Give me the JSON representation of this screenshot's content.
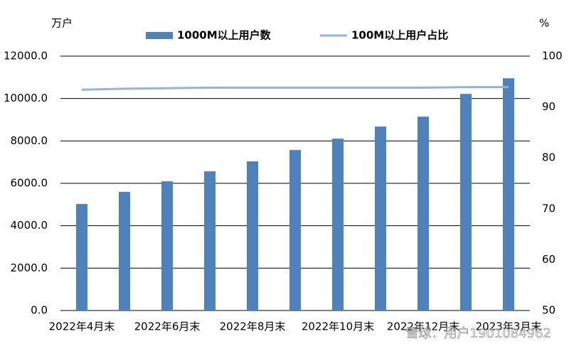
{
  "chart_data": {
    "type": "bar_line",
    "y_unit": "万户",
    "y2_unit": "%",
    "watermark": "雪球：用户1901084962",
    "categories": [
      "2022年4月末",
      null,
      "2022年6月末",
      null,
      "2022年8月末",
      null,
      "2022年10月末",
      null,
      "2022年12月末",
      null,
      "2023年3月末"
    ],
    "series": [
      {
        "name": "1000M以上用户数",
        "color": "#4f81bd",
        "values": [
          5025,
          5595,
          6097,
          6566,
          7035,
          7571,
          8107,
          8677,
          9146,
          10218,
          10955
        ]
      },
      {
        "name": "100M以上用户占比",
        "color": "#95b3d7",
        "axis": "y2",
        "values": [
          93.4,
          93.6,
          93.7,
          93.8,
          93.8,
          93.8,
          93.8,
          93.8,
          93.8,
          93.9,
          93.9
        ]
      }
    ],
    "ylim": [
      0,
      12000
    ],
    "yticks": [
      {
        "value": 0,
        "label": "0.0"
      },
      {
        "value": 2000,
        "label": "2000.0"
      },
      {
        "value": 4000,
        "label": "4000.0"
      },
      {
        "value": 6000,
        "label": "6000.0"
      },
      {
        "value": 8000,
        "label": "8000.0"
      },
      {
        "value": 10000,
        "label": "10000.0"
      },
      {
        "value": 12000,
        "label": "12000.0"
      }
    ],
    "y2lim": [
      50,
      100
    ],
    "y2ticks": [
      50,
      60,
      70,
      80,
      90,
      100
    ],
    "grid": true
  }
}
